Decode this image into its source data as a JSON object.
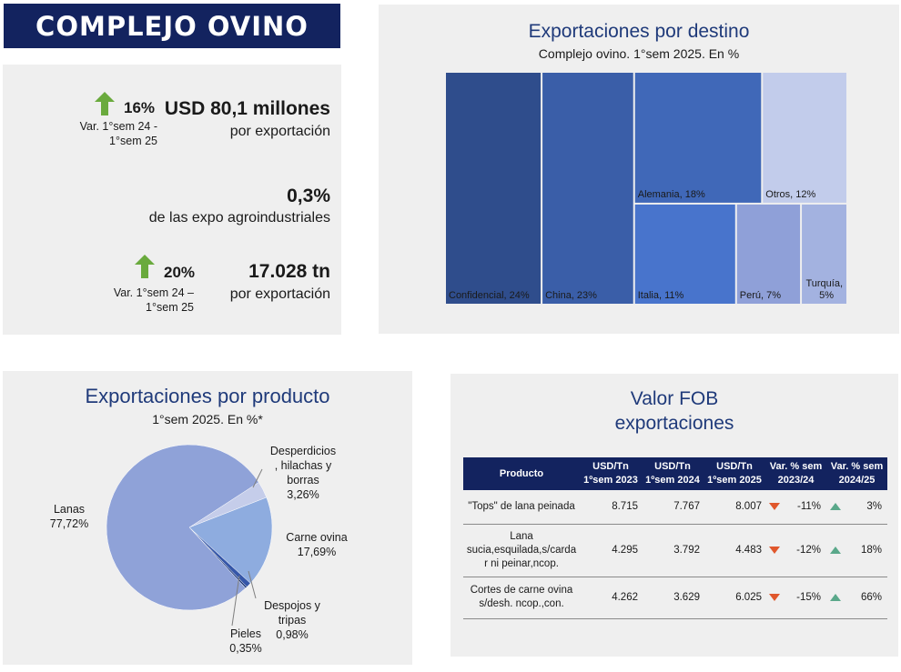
{
  "header": {
    "title": "COMPLEJO OVINO"
  },
  "summary": {
    "value_kpi": {
      "pct": "16%",
      "var_line1": "Var.  1°sem 24 -",
      "var_line2": "1°sem 25",
      "value": "USD 80,1 millones",
      "label": "por exportación"
    },
    "share_kpi": {
      "value": "0,3%",
      "label": "de las expo agroindustriales"
    },
    "volume_kpi": {
      "pct": "20%",
      "var_line1": "Var.  1°sem 24 –",
      "var_line2": "1°sem 25",
      "value": "17.028 tn",
      "label": "por exportación"
    },
    "arrow_color": "#6aaa3d"
  },
  "chart_data": [
    {
      "type": "treemap",
      "title": "Exportaciones por destino",
      "subtitle": "Complejo ovino. 1°sem 2025. En %",
      "items": [
        {
          "label": "Confidencial, 24%",
          "name": "Confidencial",
          "value": 24,
          "color": "#2f4d8c"
        },
        {
          "label": "China, 23%",
          "name": "China",
          "value": 23,
          "color": "#3a5ea8"
        },
        {
          "label": "Alemania, 18%",
          "name": "Alemania",
          "value": 18,
          "color": "#4068b8"
        },
        {
          "label": "Italia, 11%",
          "name": "Italia",
          "value": 11,
          "color": "#4874cc"
        },
        {
          "label": "Perú, 7%",
          "name": "Perú",
          "value": 7,
          "color": "#8fa0d8"
        },
        {
          "label": "Turquía,",
          "label2": "5%",
          "name": "Turquía",
          "value": 5,
          "color": "#a3b2e0"
        },
        {
          "label": "Otros, 12%",
          "name": "Otros",
          "value": 12,
          "color": "#c2cceb"
        }
      ]
    },
    {
      "type": "pie",
      "title": "Exportaciones por producto",
      "subtitle": "1°sem 2025. En %*",
      "slices": [
        {
          "name": "Lanas",
          "value": 77.72,
          "label_line1": "Lanas",
          "label_line2": "77,72%",
          "color": "#8fa2d8"
        },
        {
          "name": "Desperdicios, hilachas y borras",
          "value": 3.26,
          "label_line1": "Desperdicios",
          "label_line2": ", hilachas y",
          "label_line3": "borras",
          "label_line4": "3,26%",
          "color": "#c5cdea"
        },
        {
          "name": "Carne ovina",
          "value": 17.69,
          "label_line1": "Carne ovina",
          "label_line2": "17,69%",
          "color": "#8eacdf"
        },
        {
          "name": "Despojos y tripas",
          "value": 0.98,
          "label_line1": "Despojos y",
          "label_line2": "tripas",
          "label_line3": "0,98%",
          "color": "#3556a8"
        },
        {
          "name": "Pieles",
          "value": 0.35,
          "label_line1": "Pieles",
          "label_line2": "0,35%",
          "color": "#1f3a7a"
        }
      ]
    },
    {
      "type": "table",
      "title_line1": "Valor FOB",
      "title_line2": "exportaciones",
      "headers": [
        "Producto",
        "USD/Tn 1ºsem 2023",
        "USD/Tn 1ºsem 2024",
        "USD/Tn 1ºsem 2025",
        "Var. % sem 2023/24",
        "Var. % sem 2024/25"
      ],
      "rows": [
        {
          "product": "\"Tops\" de lana peinada",
          "usd2023": "8.715",
          "usd2024": "7.767",
          "usd2025": "8.007",
          "var2324": "-11%",
          "var2425": "3%"
        },
        {
          "product": "Lana sucia,esquilada,s/carda r ni peinar,ncop.",
          "usd2023": "4.295",
          "usd2024": "3.792",
          "usd2025": "4.483",
          "var2324": "-12%",
          "var2425": "18%"
        },
        {
          "product": "Cortes de carne ovina s/desh. ncop.,con.",
          "usd2023": "4.262",
          "usd2024": "3.629",
          "usd2025": "6.025",
          "var2324": "-15%",
          "var2425": "66%"
        }
      ]
    }
  ],
  "table_header_lines": {
    "h0": "Producto",
    "h1a": "USD/Tn",
    "h1b": "1ºsem 2023",
    "h2a": "USD/Tn",
    "h2b": "1ºsem 2024",
    "h3a": "USD/Tn",
    "h3b": "1ºsem 2025",
    "h4a": "Var. % sem",
    "h4b": "2023/24",
    "h5a": "Var. % sem",
    "h5b": "2024/25"
  },
  "table_product_lines": [
    [
      "\"Tops\" de lana peinada"
    ],
    [
      "Lana",
      "sucia,esquilada,s/carda",
      "r ni peinar,ncop."
    ],
    [
      "Cortes de carne ovina",
      "s/desh. ncop.,con."
    ]
  ],
  "colors": {
    "navy": "#13235f",
    "title_blue": "#1f3a7a",
    "panel_bg": "#efefef",
    "down": "#e0572c",
    "up": "#5aa88a"
  }
}
